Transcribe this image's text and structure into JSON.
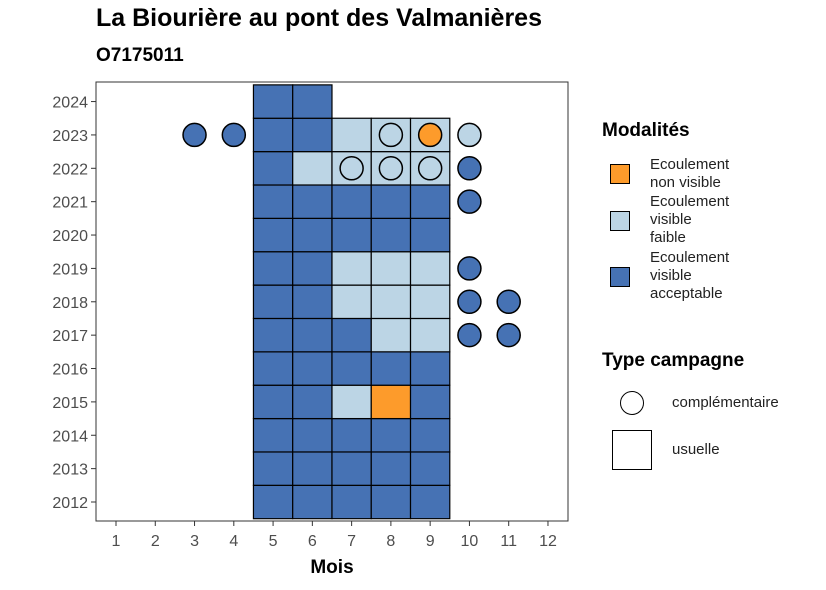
{
  "chart_data": {
    "type": "heatmap",
    "title": "La Biourière au pont des Valmanières",
    "subtitle": "O7175011",
    "xlabel": "Mois",
    "ylabel": "",
    "x_ticks": [
      "1",
      "2",
      "3",
      "4",
      "5",
      "6",
      "7",
      "8",
      "9",
      "10",
      "11",
      "12"
    ],
    "y_ticks": [
      "2012",
      "2013",
      "2014",
      "2015",
      "2016",
      "2017",
      "2018",
      "2019",
      "2020",
      "2021",
      "2022",
      "2023",
      "2024"
    ],
    "xlim": [
      1,
      12
    ],
    "ylim": [
      2012,
      2024
    ],
    "grid": false,
    "legend_position": "right",
    "colors": {
      "Ecoulement non visible": "#fd9b2b",
      "Ecoulement visible faible": "#bcd5e5",
      "Ecoulement visible acceptable": "#4672b4"
    },
    "legend_modalites": {
      "title": "Modalités",
      "items": [
        {
          "key": "Ecoulement non visible",
          "lines": [
            "Ecoulement",
            "non visible"
          ]
        },
        {
          "key": "Ecoulement visible faible",
          "lines": [
            "Ecoulement",
            "visible",
            "faible"
          ]
        },
        {
          "key": "Ecoulement visible acceptable",
          "lines": [
            "Ecoulement",
            "visible",
            "acceptable"
          ]
        }
      ]
    },
    "legend_campagne": {
      "title": "Type campagne",
      "items": [
        {
          "shape": "circle",
          "label": "complémentaire"
        },
        {
          "shape": "square",
          "label": "usuelle"
        }
      ]
    },
    "usuelle": [
      {
        "year": 2012,
        "month": 5,
        "value": "Ecoulement visible acceptable"
      },
      {
        "year": 2012,
        "month": 6,
        "value": "Ecoulement visible acceptable"
      },
      {
        "year": 2012,
        "month": 7,
        "value": "Ecoulement visible acceptable"
      },
      {
        "year": 2012,
        "month": 8,
        "value": "Ecoulement visible acceptable"
      },
      {
        "year": 2012,
        "month": 9,
        "value": "Ecoulement visible acceptable"
      },
      {
        "year": 2013,
        "month": 5,
        "value": "Ecoulement visible acceptable"
      },
      {
        "year": 2013,
        "month": 6,
        "value": "Ecoulement visible acceptable"
      },
      {
        "year": 2013,
        "month": 7,
        "value": "Ecoulement visible acceptable"
      },
      {
        "year": 2013,
        "month": 8,
        "value": "Ecoulement visible acceptable"
      },
      {
        "year": 2013,
        "month": 9,
        "value": "Ecoulement visible acceptable"
      },
      {
        "year": 2014,
        "month": 5,
        "value": "Ecoulement visible acceptable"
      },
      {
        "year": 2014,
        "month": 6,
        "value": "Ecoulement visible acceptable"
      },
      {
        "year": 2014,
        "month": 7,
        "value": "Ecoulement visible acceptable"
      },
      {
        "year": 2014,
        "month": 8,
        "value": "Ecoulement visible acceptable"
      },
      {
        "year": 2014,
        "month": 9,
        "value": "Ecoulement visible acceptable"
      },
      {
        "year": 2015,
        "month": 5,
        "value": "Ecoulement visible acceptable"
      },
      {
        "year": 2015,
        "month": 6,
        "value": "Ecoulement visible acceptable"
      },
      {
        "year": 2015,
        "month": 7,
        "value": "Ecoulement visible faible"
      },
      {
        "year": 2015,
        "month": 8,
        "value": "Ecoulement non visible"
      },
      {
        "year": 2015,
        "month": 9,
        "value": "Ecoulement visible acceptable"
      },
      {
        "year": 2016,
        "month": 5,
        "value": "Ecoulement visible acceptable"
      },
      {
        "year": 2016,
        "month": 6,
        "value": "Ecoulement visible acceptable"
      },
      {
        "year": 2016,
        "month": 7,
        "value": "Ecoulement visible acceptable"
      },
      {
        "year": 2016,
        "month": 8,
        "value": "Ecoulement visible acceptable"
      },
      {
        "year": 2016,
        "month": 9,
        "value": "Ecoulement visible acceptable"
      },
      {
        "year": 2017,
        "month": 5,
        "value": "Ecoulement visible acceptable"
      },
      {
        "year": 2017,
        "month": 6,
        "value": "Ecoulement visible acceptable"
      },
      {
        "year": 2017,
        "month": 7,
        "value": "Ecoulement visible acceptable"
      },
      {
        "year": 2017,
        "month": 8,
        "value": "Ecoulement visible faible"
      },
      {
        "year": 2017,
        "month": 9,
        "value": "Ecoulement visible faible"
      },
      {
        "year": 2018,
        "month": 5,
        "value": "Ecoulement visible acceptable"
      },
      {
        "year": 2018,
        "month": 6,
        "value": "Ecoulement visible acceptable"
      },
      {
        "year": 2018,
        "month": 7,
        "value": "Ecoulement visible faible"
      },
      {
        "year": 2018,
        "month": 8,
        "value": "Ecoulement visible faible"
      },
      {
        "year": 2018,
        "month": 9,
        "value": "Ecoulement visible faible"
      },
      {
        "year": 2019,
        "month": 5,
        "value": "Ecoulement visible acceptable"
      },
      {
        "year": 2019,
        "month": 6,
        "value": "Ecoulement visible acceptable"
      },
      {
        "year": 2019,
        "month": 7,
        "value": "Ecoulement visible faible"
      },
      {
        "year": 2019,
        "month": 8,
        "value": "Ecoulement visible faible"
      },
      {
        "year": 2019,
        "month": 9,
        "value": "Ecoulement visible faible"
      },
      {
        "year": 2020,
        "month": 5,
        "value": "Ecoulement visible acceptable"
      },
      {
        "year": 2020,
        "month": 6,
        "value": "Ecoulement visible acceptable"
      },
      {
        "year": 2020,
        "month": 7,
        "value": "Ecoulement visible acceptable"
      },
      {
        "year": 2020,
        "month": 8,
        "value": "Ecoulement visible acceptable"
      },
      {
        "year": 2020,
        "month": 9,
        "value": "Ecoulement visible acceptable"
      },
      {
        "year": 2021,
        "month": 5,
        "value": "Ecoulement visible acceptable"
      },
      {
        "year": 2021,
        "month": 6,
        "value": "Ecoulement visible acceptable"
      },
      {
        "year": 2021,
        "month": 7,
        "value": "Ecoulement visible acceptable"
      },
      {
        "year": 2021,
        "month": 8,
        "value": "Ecoulement visible acceptable"
      },
      {
        "year": 2021,
        "month": 9,
        "value": "Ecoulement visible acceptable"
      },
      {
        "year": 2022,
        "month": 5,
        "value": "Ecoulement visible acceptable"
      },
      {
        "year": 2022,
        "month": 6,
        "value": "Ecoulement visible faible"
      },
      {
        "year": 2022,
        "month": 7,
        "value": "Ecoulement visible faible"
      },
      {
        "year": 2022,
        "month": 8,
        "value": "Ecoulement visible faible"
      },
      {
        "year": 2022,
        "month": 9,
        "value": "Ecoulement visible faible"
      },
      {
        "year": 2023,
        "month": 5,
        "value": "Ecoulement visible acceptable"
      },
      {
        "year": 2023,
        "month": 6,
        "value": "Ecoulement visible acceptable"
      },
      {
        "year": 2023,
        "month": 7,
        "value": "Ecoulement visible faible"
      },
      {
        "year": 2023,
        "month": 8,
        "value": "Ecoulement visible faible"
      },
      {
        "year": 2023,
        "month": 9,
        "value": "Ecoulement visible faible"
      },
      {
        "year": 2024,
        "month": 5,
        "value": "Ecoulement visible acceptable"
      },
      {
        "year": 2024,
        "month": 6,
        "value": "Ecoulement visible acceptable"
      }
    ],
    "complementaire": [
      {
        "year": 2017,
        "month": 10,
        "value": "Ecoulement visible acceptable"
      },
      {
        "year": 2017,
        "month": 11,
        "value": "Ecoulement visible acceptable"
      },
      {
        "year": 2018,
        "month": 10,
        "value": "Ecoulement visible acceptable"
      },
      {
        "year": 2018,
        "month": 11,
        "value": "Ecoulement visible acceptable"
      },
      {
        "year": 2019,
        "month": 10,
        "value": "Ecoulement visible acceptable"
      },
      {
        "year": 2021,
        "month": 10,
        "value": "Ecoulement visible acceptable"
      },
      {
        "year": 2022,
        "month": 7,
        "value": "Ecoulement visible faible"
      },
      {
        "year": 2022,
        "month": 8,
        "value": "Ecoulement visible faible"
      },
      {
        "year": 2022,
        "month": 9,
        "value": "Ecoulement visible faible"
      },
      {
        "year": 2022,
        "month": 10,
        "value": "Ecoulement visible acceptable"
      },
      {
        "year": 2023,
        "month": 3,
        "value": "Ecoulement visible acceptable"
      },
      {
        "year": 2023,
        "month": 4,
        "value": "Ecoulement visible acceptable"
      },
      {
        "year": 2023,
        "month": 8,
        "value": "Ecoulement visible faible"
      },
      {
        "year": 2023,
        "month": 9,
        "value": "Ecoulement non visible"
      },
      {
        "year": 2023,
        "month": 10,
        "value": "Ecoulement visible faible"
      }
    ]
  }
}
